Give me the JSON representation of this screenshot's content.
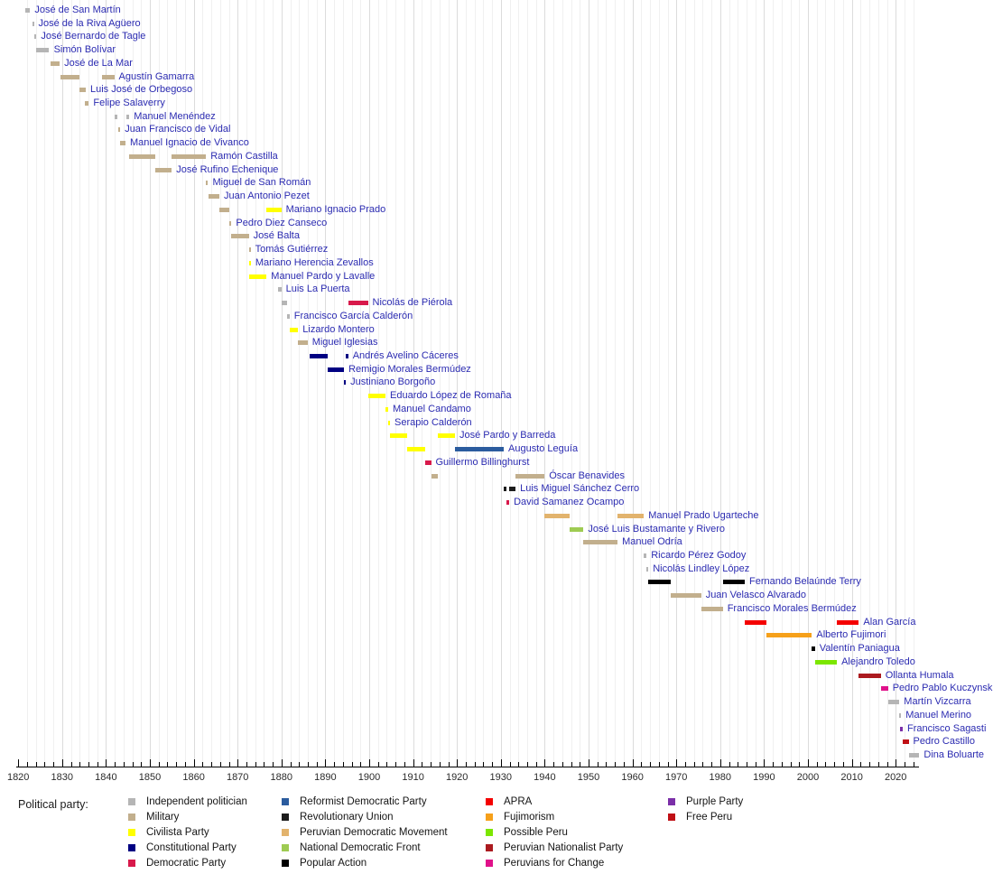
{
  "legend": {
    "title": "Political party:",
    "columns": [
      [
        "independent",
        "military",
        "civilista",
        "constitutional",
        "democratic"
      ],
      [
        "reformist",
        "revolutionary_union",
        "pdm",
        "ndf",
        "popular_action"
      ],
      [
        "apra",
        "fujimorism",
        "possible_peru",
        "nationalist",
        "pfc"
      ],
      [
        "purple",
        "free_peru"
      ]
    ]
  },
  "parties": {
    "independent": {
      "label": "Independent politician",
      "color": "#b5b5b5"
    },
    "military": {
      "label": "Military",
      "color": "#c2af8d"
    },
    "civilista": {
      "label": "Civilista Party",
      "color": "#ffff00"
    },
    "constitutional": {
      "label": "Constitutional Party",
      "color": "#000082"
    },
    "democratic": {
      "label": "Democratic Party",
      "color": "#d8194b"
    },
    "reformist": {
      "label": "Reformist Democratic Party",
      "color": "#2b5c9e"
    },
    "revolutionary_union": {
      "label": "Revolutionary Union",
      "color": "#1c1c1c"
    },
    "pdm": {
      "label": "Peruvian Democratic Movement",
      "color": "#e2b36d"
    },
    "ndf": {
      "label": "National Democratic Front",
      "color": "#9ecb52"
    },
    "popular_action": {
      "label": "Popular Action",
      "color": "#000000"
    },
    "apra": {
      "label": "APRA",
      "color": "#f40000"
    },
    "fujimorism": {
      "label": "Fujimorism",
      "color": "#f6a01a"
    },
    "possible_peru": {
      "label": "Possible Peru",
      "color": "#7ce600"
    },
    "nationalist": {
      "label": "Peruvian Nationalist Party",
      "color": "#ab1a1f"
    },
    "pfc": {
      "label": "Peruvians for Change",
      "color": "#e0118a"
    },
    "purple": {
      "label": "Purple Party",
      "color": "#7b2fa8"
    },
    "free_peru": {
      "label": "Free Peru",
      "color": "#c01015"
    }
  },
  "chart_data": {
    "type": "bar",
    "subtype": "gantt-timeline",
    "x_axis": {
      "min": 1820,
      "max": 2026,
      "minor_tick_step": 2,
      "labels": [
        "1820",
        "1830",
        "1840",
        "1850",
        "1860",
        "1870",
        "1880",
        "1890",
        "1900",
        "1910",
        "1920",
        "1930",
        "1940",
        "1950",
        "1960",
        "1970",
        "1980",
        "1990",
        "2000",
        "2010",
        "2020"
      ]
    },
    "rows": [
      {
        "name": "José de San Martín",
        "terms": [
          {
            "party": "independent",
            "start": 1821.58,
            "end": 1822.71
          }
        ]
      },
      {
        "name": "José de la Riva Agüero",
        "terms": [
          {
            "party": "independent",
            "start": 1823.15,
            "end": 1823.5
          }
        ]
      },
      {
        "name": "José Bernardo de Tagle",
        "terms": [
          {
            "party": "independent",
            "start": 1823.6,
            "end": 1824.15
          }
        ]
      },
      {
        "name": "Simón Bolívar",
        "terms": [
          {
            "party": "independent",
            "start": 1824.12,
            "end": 1827.07
          }
        ]
      },
      {
        "name": "José de La Mar",
        "terms": [
          {
            "party": "military",
            "start": 1827.45,
            "end": 1829.45
          }
        ]
      },
      {
        "name": "Agustín Gamarra",
        "terms": [
          {
            "party": "military",
            "start": 1829.65,
            "end": 1833.95
          },
          {
            "party": "military",
            "start": 1839.1,
            "end": 1841.88
          }
        ]
      },
      {
        "name": "Luis José de Orbegoso",
        "terms": [
          {
            "party": "military",
            "start": 1833.95,
            "end": 1835.4
          }
        ]
      },
      {
        "name": "Felipe Salaverry",
        "terms": [
          {
            "party": "military",
            "start": 1835.15,
            "end": 1836.1
          }
        ]
      },
      {
        "name": "Manuel Menéndez",
        "terms": [
          {
            "party": "independent",
            "start": 1841.88,
            "end": 1842.6
          },
          {
            "party": "independent",
            "start": 1844.55,
            "end": 1845.3
          }
        ]
      },
      {
        "name": "Juan Francisco de Vidal",
        "terms": [
          {
            "party": "military",
            "start": 1842.8,
            "end": 1843.25
          }
        ]
      },
      {
        "name": "Manuel Ignacio de Vivanco",
        "terms": [
          {
            "party": "military",
            "start": 1843.25,
            "end": 1844.45
          }
        ]
      },
      {
        "name": "Ramón Castilla",
        "terms": [
          {
            "party": "military",
            "start": 1845.3,
            "end": 1851.3
          },
          {
            "party": "military",
            "start": 1855.0,
            "end": 1862.8
          }
        ]
      },
      {
        "name": "José Rufino Echenique",
        "terms": [
          {
            "party": "military",
            "start": 1851.3,
            "end": 1855.0
          }
        ]
      },
      {
        "name": "Miguel de San Román",
        "terms": [
          {
            "party": "military",
            "start": 1862.8,
            "end": 1863.27
          }
        ]
      },
      {
        "name": "Juan Antonio Pezet",
        "terms": [
          {
            "party": "military",
            "start": 1863.3,
            "end": 1865.85
          }
        ]
      },
      {
        "name": "Mariano Ignacio Prado",
        "terms": [
          {
            "party": "military",
            "start": 1865.9,
            "end": 1868.05
          },
          {
            "party": "civilista",
            "start": 1876.6,
            "end": 1879.95
          }
        ]
      },
      {
        "name": "Pedro Diez Canseco",
        "terms": [
          {
            "party": "military",
            "start": 1868.05,
            "end": 1868.6
          }
        ]
      },
      {
        "name": "José Balta",
        "terms": [
          {
            "party": "military",
            "start": 1868.6,
            "end": 1872.55
          }
        ]
      },
      {
        "name": "Tomás Gutiérrez",
        "terms": [
          {
            "party": "military",
            "start": 1872.55,
            "end": 1872.62
          }
        ]
      },
      {
        "name": "Mariano Herencia Zevallos",
        "terms": [
          {
            "party": "civilista",
            "start": 1872.62,
            "end": 1872.68
          }
        ]
      },
      {
        "name": "Manuel Pardo y Lavalle",
        "terms": [
          {
            "party": "civilista",
            "start": 1872.65,
            "end": 1876.6
          }
        ]
      },
      {
        "name": "Luis La Puerta",
        "terms": [
          {
            "party": "independent",
            "start": 1879.3,
            "end": 1879.95
          }
        ]
      },
      {
        "name": "Nicolás de Piérola",
        "terms": [
          {
            "party": "independent",
            "start": 1879.95,
            "end": 1881.2
          },
          {
            "party": "democratic",
            "start": 1895.2,
            "end": 1899.7
          }
        ]
      },
      {
        "name": "Francisco García Calderón",
        "terms": [
          {
            "party": "independent",
            "start": 1881.2,
            "end": 1881.85
          }
        ]
      },
      {
        "name": "Lizardo Montero",
        "terms": [
          {
            "party": "civilista",
            "start": 1881.85,
            "end": 1883.8
          }
        ]
      },
      {
        "name": "Miguel Iglesias",
        "terms": [
          {
            "party": "military",
            "start": 1883.8,
            "end": 1885.95
          }
        ]
      },
      {
        "name": "Andrés Avelino Cáceres",
        "terms": [
          {
            "party": "constitutional",
            "start": 1886.4,
            "end": 1890.6
          },
          {
            "party": "constitutional",
            "start": 1894.6,
            "end": 1895.2
          }
        ]
      },
      {
        "name": "Remigio Morales Bermúdez",
        "terms": [
          {
            "party": "constitutional",
            "start": 1890.6,
            "end": 1894.25
          }
        ]
      },
      {
        "name": "Justiniano Borgoño",
        "terms": [
          {
            "party": "constitutional",
            "start": 1894.25,
            "end": 1894.6
          }
        ]
      },
      {
        "name": "Eduardo López de Romaña",
        "terms": [
          {
            "party": "civilista",
            "start": 1899.7,
            "end": 1903.7
          }
        ]
      },
      {
        "name": "Manuel Candamo",
        "terms": [
          {
            "party": "civilista",
            "start": 1903.7,
            "end": 1904.33
          }
        ]
      },
      {
        "name": "Serapio Calderón",
        "terms": [
          {
            "party": "civilista",
            "start": 1904.33,
            "end": 1904.73
          }
        ]
      },
      {
        "name": "José Pardo y Barreda",
        "terms": [
          {
            "party": "civilista",
            "start": 1904.73,
            "end": 1908.73
          },
          {
            "party": "civilista",
            "start": 1915.65,
            "end": 1919.55
          }
        ]
      },
      {
        "name": "Augusto Leguía",
        "terms": [
          {
            "party": "civilista",
            "start": 1908.73,
            "end": 1912.73
          },
          {
            "party": "reformist",
            "start": 1919.55,
            "end": 1930.65
          }
        ]
      },
      {
        "name": "Guillermo Billinghurst",
        "terms": [
          {
            "party": "democratic",
            "start": 1912.73,
            "end": 1914.1
          }
        ]
      },
      {
        "name": "Óscar Benavides",
        "terms": [
          {
            "party": "military",
            "start": 1914.1,
            "end": 1915.65
          },
          {
            "party": "military",
            "start": 1933.35,
            "end": 1939.95
          }
        ]
      },
      {
        "name": "Luis Miguel Sánchez Cerro",
        "terms": [
          {
            "party": "revolutionary_union",
            "start": 1930.65,
            "end": 1931.17
          },
          {
            "party": "revolutionary_union",
            "start": 1931.92,
            "end": 1933.35
          }
        ]
      },
      {
        "name": "David Samanez Ocampo",
        "terms": [
          {
            "party": "democratic",
            "start": 1931.17,
            "end": 1931.92
          }
        ]
      },
      {
        "name": "Manuel Prado Ugarteche",
        "terms": [
          {
            "party": "pdm",
            "start": 1939.95,
            "end": 1945.6
          },
          {
            "party": "pdm",
            "start": 1956.6,
            "end": 1962.6
          }
        ]
      },
      {
        "name": "José Luis Bustamante y Rivero",
        "terms": [
          {
            "party": "ndf",
            "start": 1945.6,
            "end": 1948.85
          }
        ]
      },
      {
        "name": "Manuel Odría",
        "terms": [
          {
            "party": "military",
            "start": 1948.85,
            "end": 1956.6
          }
        ]
      },
      {
        "name": "Ricardo Pérez Godoy",
        "terms": [
          {
            "party": "independent",
            "start": 1962.6,
            "end": 1963.2
          }
        ]
      },
      {
        "name": "Nicolás Lindley López",
        "terms": [
          {
            "party": "independent",
            "start": 1963.2,
            "end": 1963.6
          }
        ]
      },
      {
        "name": "Fernando Belaúnde Terry",
        "terms": [
          {
            "party": "popular_action",
            "start": 1963.6,
            "end": 1968.75
          },
          {
            "party": "popular_action",
            "start": 1980.6,
            "end": 1985.6
          }
        ]
      },
      {
        "name": "Juan Velasco Alvarado",
        "terms": [
          {
            "party": "military",
            "start": 1968.75,
            "end": 1975.65
          }
        ]
      },
      {
        "name": "Francisco Morales Bermúdez",
        "terms": [
          {
            "party": "military",
            "start": 1975.65,
            "end": 1980.6
          }
        ]
      },
      {
        "name": "Alan García",
        "terms": [
          {
            "party": "apra",
            "start": 1985.6,
            "end": 1990.6
          },
          {
            "party": "apra",
            "start": 2006.6,
            "end": 2011.6
          }
        ]
      },
      {
        "name": "Alberto Fujimori",
        "terms": [
          {
            "party": "fujimorism",
            "start": 1990.6,
            "end": 2000.9
          }
        ]
      },
      {
        "name": "Valentín Paniagua",
        "terms": [
          {
            "party": "popular_action",
            "start": 2000.9,
            "end": 2001.6
          }
        ]
      },
      {
        "name": "Alejandro Toledo",
        "terms": [
          {
            "party": "possible_peru",
            "start": 2001.6,
            "end": 2006.6
          }
        ]
      },
      {
        "name": "Ollanta Humala",
        "terms": [
          {
            "party": "nationalist",
            "start": 2011.6,
            "end": 2016.6
          }
        ]
      },
      {
        "name": "Pedro Pablo Kuczynski",
        "terms": [
          {
            "party": "pfc",
            "start": 2016.6,
            "end": 2018.25
          }
        ]
      },
      {
        "name": "Martín Vizcarra",
        "terms": [
          {
            "party": "independent",
            "start": 2018.25,
            "end": 2020.85
          }
        ]
      },
      {
        "name": "Manuel Merino",
        "terms": [
          {
            "party": "independent",
            "start": 2020.85,
            "end": 2020.93
          }
        ]
      },
      {
        "name": "Francisco Sagasti",
        "terms": [
          {
            "party": "purple",
            "start": 2020.93,
            "end": 2021.6
          }
        ]
      },
      {
        "name": "Pedro Castillo",
        "terms": [
          {
            "party": "free_peru",
            "start": 2021.6,
            "end": 2022.95
          }
        ]
      },
      {
        "name": "Dina Boluarte",
        "terms": [
          {
            "party": "independent",
            "start": 2022.95,
            "end": 2025.4
          }
        ]
      }
    ]
  }
}
